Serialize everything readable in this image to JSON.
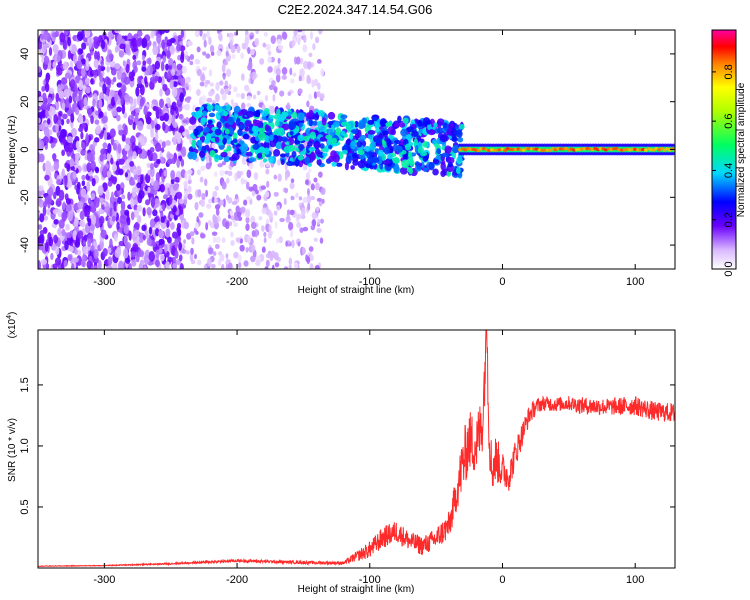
{
  "title": "C2E2.2024.347.14.54.G06",
  "chart_data": [
    {
      "type": "heatmap",
      "xlabel": "Height of straight line (km)",
      "ylabel": "Frequency (Hz)",
      "xlim": [
        -350,
        130
      ],
      "ylim": [
        -50,
        50
      ],
      "x_ticks": [
        -300,
        -200,
        -100,
        0,
        100
      ],
      "y_ticks": [
        -40,
        -20,
        0,
        20,
        40
      ],
      "colorbar": {
        "label": "Normalized spectral amplitude",
        "range": [
          0,
          0.97
        ],
        "ticks": [
          "0.0",
          "0.2",
          "0.4",
          "0.6",
          "0.8"
        ]
      },
      "regions": [
        {
          "x": [
            -350,
            -240
          ],
          "description_level": 0.15,
          "freq_spread": [
            -50,
            50
          ]
        },
        {
          "x": [
            -240,
            -135
          ],
          "description_level": 0.1,
          "freq_spread": [
            -50,
            50
          ]
        },
        {
          "x": [
            -235,
            -30
          ],
          "description_level": 0.35,
          "freq_center": 5,
          "freq_halfwidth": 10
        },
        {
          "x": [
            -30,
            130
          ],
          "description_level": 0.85,
          "freq_center": 0,
          "freq_halfwidth": 2
        }
      ]
    },
    {
      "type": "line",
      "xlabel": "Height of straight line (km)",
      "ylabel": "SNR (10 * v/v)",
      "y_multiplier": "(x10^4)",
      "xlim": [
        -350,
        130
      ],
      "ylim": [
        0,
        19500
      ],
      "x_ticks": [
        -300,
        -200,
        -100,
        0,
        100
      ],
      "y_ticks": [
        "0.5",
        "1.0",
        "1.5"
      ],
      "y_tick_values": [
        5000,
        10000,
        15000
      ],
      "series_color": "#ff2a2a",
      "series": [
        {
          "x": [
            -350,
            -300,
            -250,
            -200,
            -150,
            -120,
            -100,
            -90,
            -80,
            -70,
            -60,
            -50,
            -40,
            -35,
            -30,
            -25,
            -20,
            -15,
            -12,
            -10,
            -8,
            -5,
            0,
            5,
            10,
            15,
            20,
            25,
            30,
            40,
            50,
            60,
            80,
            100,
            115,
            130
          ],
          "y": [
            150,
            200,
            350,
            600,
            450,
            400,
            1500,
            2500,
            3000,
            2200,
            1800,
            2400,
            3500,
            6000,
            8500,
            10500,
            10000,
            12000,
            19500,
            11000,
            8000,
            9000,
            8000,
            7500,
            9500,
            11000,
            12500,
            13200,
            13500,
            13400,
            13500,
            13300,
            13200,
            13300,
            12800,
            12700
          ],
          "noise": [
            20,
            30,
            60,
            120,
            120,
            140,
            700,
            900,
            900,
            800,
            800,
            900,
            1200,
            1500,
            2500,
            2500,
            2500,
            2500,
            2500,
            2500,
            2000,
            2000,
            1500,
            1200,
            1200,
            1000,
            800,
            700,
            600,
            600,
            600,
            700,
            700,
            800,
            800,
            800
          ]
        }
      ]
    }
  ]
}
